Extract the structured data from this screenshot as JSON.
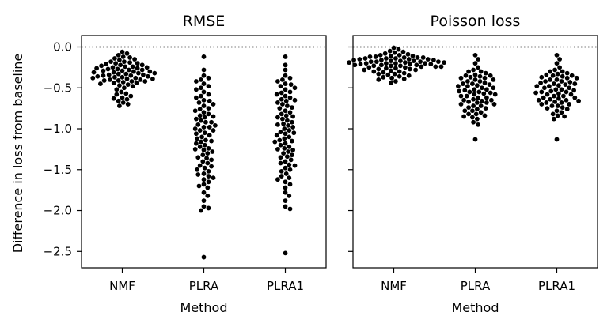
{
  "chart_data": {
    "type": "scatter",
    "subtype": "swarm/strip plot",
    "shared_y": true,
    "ylabel": "Difference in loss from baseline",
    "ylim": [
      -2.7,
      0.14
    ],
    "yticks": [
      0.0,
      -0.5,
      -1.0,
      -1.5,
      -2.0,
      -2.5
    ],
    "ytick_labels": [
      "0.0",
      "−0.5",
      "−1.0",
      "−1.5",
      "−2.0",
      "−2.5"
    ],
    "baseline": 0.0,
    "baseline_style": "dotted",
    "categories": [
      "NMF",
      "PLRA",
      "PLRA1"
    ],
    "point_color": "#000000",
    "panels": [
      {
        "title": "RMSE",
        "xlabel": "Method",
        "series": [
          {
            "category": "NMF",
            "values": [
              -0.06,
              -0.08,
              -0.1,
              -0.12,
              -0.13,
              -0.15,
              -0.16,
              -0.18,
              -0.19,
              -0.2,
              -0.21,
              -0.22,
              -0.23,
              -0.24,
              -0.25,
              -0.26,
              -0.27,
              -0.28,
              -0.29,
              -0.3,
              -0.31,
              -0.32,
              -0.33,
              -0.34,
              -0.35,
              -0.36,
              -0.37,
              -0.38,
              -0.39,
              -0.4,
              -0.41,
              -0.42,
              -0.43,
              -0.44,
              -0.45,
              -0.46,
              -0.48,
              -0.5,
              -0.52,
              -0.55,
              -0.58,
              -0.6,
              -0.62,
              -0.64,
              -0.66,
              -0.68,
              -0.7,
              -0.72,
              -0.22,
              -0.26,
              -0.3,
              -0.34,
              -0.38,
              -0.42,
              -0.28,
              -0.32,
              -0.36,
              -0.4,
              -0.24,
              -0.44,
              -0.2,
              -0.35,
              -0.27,
              -0.31,
              -0.39,
              -0.47,
              -0.25,
              -0.33,
              -0.29,
              -0.37,
              -0.41,
              -0.57,
              -0.63,
              -0.18,
              -0.14
            ]
          },
          {
            "category": "PLRA",
            "values": [
              -0.12,
              -0.28,
              -0.35,
              -0.38,
              -0.42,
              -0.45,
              -0.48,
              -0.52,
              -0.55,
              -0.58,
              -0.62,
              -0.65,
              -0.68,
              -0.72,
              -0.75,
              -0.78,
              -0.8,
              -0.82,
              -0.85,
              -0.88,
              -0.9,
              -0.92,
              -0.95,
              -0.98,
              -1.0,
              -1.02,
              -1.05,
              -1.08,
              -1.1,
              -1.12,
              -1.15,
              -1.18,
              -1.2,
              -1.22,
              -1.25,
              -1.28,
              -1.3,
              -1.32,
              -1.35,
              -1.38,
              -1.4,
              -1.42,
              -1.45,
              -1.48,
              -1.5,
              -1.52,
              -1.55,
              -1.58,
              -1.6,
              -1.62,
              -1.65,
              -1.68,
              -1.72,
              -1.78,
              -1.82,
              -1.88,
              -1.95,
              -1.97,
              -2.0,
              -2.57,
              -0.6,
              -0.7,
              -0.86,
              -0.96,
              -1.06,
              -1.16,
              -1.26,
              -1.36,
              -0.76,
              -0.66,
              -0.5,
              -0.92,
              -1.02,
              -1.14,
              -0.84,
              -1.46,
              -1.56,
              -1.7,
              -0.4,
              -0.98,
              -1.24
            ]
          },
          {
            "category": "PLRA1",
            "values": [
              -0.12,
              -0.22,
              -0.28,
              -0.35,
              -0.38,
              -0.4,
              -0.42,
              -0.45,
              -0.48,
              -0.5,
              -0.52,
              -0.55,
              -0.58,
              -0.6,
              -0.62,
              -0.65,
              -0.68,
              -0.7,
              -0.72,
              -0.75,
              -0.78,
              -0.8,
              -0.82,
              -0.85,
              -0.88,
              -0.9,
              -0.92,
              -0.95,
              -0.98,
              -1.0,
              -1.02,
              -1.05,
              -1.08,
              -1.1,
              -1.12,
              -1.15,
              -1.18,
              -1.2,
              -1.22,
              -1.25,
              -1.28,
              -1.3,
              -1.32,
              -1.35,
              -1.38,
              -1.4,
              -1.42,
              -1.45,
              -1.48,
              -1.5,
              -1.52,
              -1.55,
              -1.58,
              -1.62,
              -1.65,
              -1.68,
              -1.72,
              -1.78,
              -1.82,
              -1.88,
              -1.95,
              -1.98,
              -2.52,
              -0.64,
              -0.74,
              -0.84,
              -0.94,
              -1.04,
              -1.14,
              -1.24,
              -1.34,
              -0.56,
              -0.66,
              -0.86,
              -0.96,
              -1.06,
              -1.26,
              -1.44,
              -1.6,
              -0.46,
              -1.16
            ]
          }
        ]
      },
      {
        "title": "Poisson loss",
        "xlabel": "Method",
        "series": [
          {
            "category": "NMF",
            "values": [
              -0.01,
              -0.03,
              -0.05,
              -0.06,
              -0.07,
              -0.08,
              -0.09,
              -0.1,
              -0.11,
              -0.12,
              -0.13,
              -0.14,
              -0.15,
              -0.16,
              -0.17,
              -0.18,
              -0.19,
              -0.2,
              -0.21,
              -0.22,
              -0.23,
              -0.24,
              -0.25,
              -0.26,
              -0.27,
              -0.28,
              -0.29,
              -0.3,
              -0.31,
              -0.32,
              -0.33,
              -0.34,
              -0.35,
              -0.36,
              -0.37,
              -0.38,
              -0.39,
              -0.4,
              -0.42,
              -0.44,
              -0.12,
              -0.14,
              -0.16,
              -0.18,
              -0.2,
              -0.22,
              -0.24,
              -0.15,
              -0.17,
              -0.19,
              -0.21,
              -0.13,
              -0.23,
              -0.11,
              -0.25,
              -0.18,
              -0.2,
              -0.16,
              -0.14,
              -0.22,
              -0.26,
              -0.28,
              -0.19,
              -0.17,
              -0.21,
              -0.15,
              -0.1,
              -0.3,
              -0.33,
              -0.24,
              -0.27,
              -0.18,
              -0.2,
              -0.23,
              -0.13
            ]
          },
          {
            "category": "PLRA",
            "values": [
              -0.1,
              -0.15,
              -0.2,
              -0.25,
              -0.28,
              -0.3,
              -0.32,
              -0.35,
              -0.38,
              -0.4,
              -0.42,
              -0.45,
              -0.48,
              -0.5,
              -0.52,
              -0.55,
              -0.58,
              -0.6,
              -0.62,
              -0.65,
              -0.68,
              -0.7,
              -0.72,
              -0.75,
              -0.78,
              -0.8,
              -0.82,
              -0.85,
              -0.88,
              -0.92,
              -0.95,
              -1.13,
              -0.36,
              -0.44,
              -0.54,
              -0.64,
              -0.74,
              -0.84,
              -0.46,
              -0.56,
              -0.66,
              -0.34,
              -0.4,
              -0.5,
              -0.6,
              -0.7,
              -0.38,
              -0.48,
              -0.58,
              -0.68,
              -0.42,
              -0.52,
              -0.62,
              -0.3,
              -0.76,
              -0.86,
              -0.55,
              -0.45,
              -0.65,
              -0.35,
              -0.78,
              -0.57,
              -0.47,
              -0.67,
              -0.37,
              -0.72,
              -0.82,
              -0.53
            ]
          },
          {
            "category": "PLRA1",
            "values": [
              -0.1,
              -0.15,
              -0.2,
              -0.25,
              -0.28,
              -0.3,
              -0.32,
              -0.35,
              -0.38,
              -0.4,
              -0.42,
              -0.45,
              -0.48,
              -0.5,
              -0.52,
              -0.55,
              -0.58,
              -0.6,
              -0.62,
              -0.65,
              -0.68,
              -0.7,
              -0.72,
              -0.75,
              -0.78,
              -0.8,
              -0.82,
              -0.85,
              -0.88,
              -1.13,
              -0.36,
              -0.44,
              -0.54,
              -0.64,
              -0.74,
              -0.84,
              -0.46,
              -0.56,
              -0.66,
              -0.34,
              -0.4,
              -0.5,
              -0.6,
              -0.7,
              -0.38,
              -0.48,
              -0.58,
              -0.68,
              -0.42,
              -0.52,
              -0.62,
              -0.3,
              -0.76,
              -0.55,
              -0.45,
              -0.65,
              -0.35,
              -0.57,
              -0.47,
              -0.67,
              -0.37,
              -0.72,
              -0.53,
              -0.43,
              -0.63,
              -0.33
            ]
          }
        ]
      }
    ]
  }
}
